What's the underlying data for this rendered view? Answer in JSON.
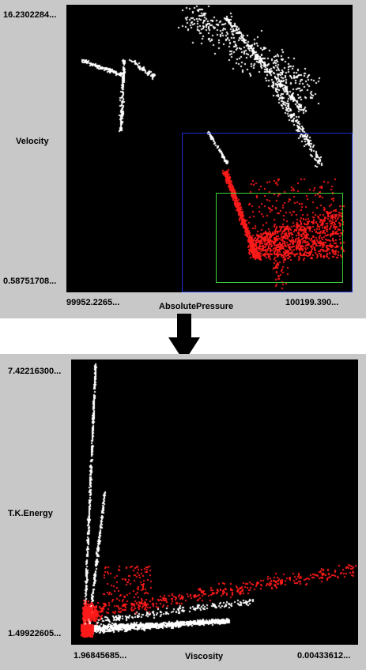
{
  "charts": [
    {
      "type": "scatter",
      "xlabel": "AbsolutePressure",
      "ylabel": "Velocity",
      "x_min_label": "99952.2265...",
      "x_max_label": "100199.390...",
      "y_max_label": "16.2302284...",
      "y_min_label": "0.58751708...",
      "xlim": [
        99952.2265,
        100199.39
      ],
      "ylim": [
        0.58751708,
        16.2302284
      ],
      "series": [
        {
          "color": "#ffffff",
          "role": "unselected points"
        },
        {
          "color": "#ff1a1a",
          "role": "selected points"
        }
      ],
      "selections": [
        {
          "color": "#1a2fd6",
          "x": [
            100052.2,
            100199.39
          ],
          "y": [
            0.58751708,
            9.25
          ]
        },
        {
          "color": "#3ad23a",
          "x": [
            100081.5,
            100191.0
          ],
          "y": [
            1.1,
            6.0
          ]
        }
      ]
    },
    {
      "type": "scatter",
      "xlabel": "Viscosity",
      "ylabel": "T.K.Energy",
      "x_min_label": "1.96845685...",
      "x_max_label": "0.00433612...",
      "y_max_label": "7.42216300...",
      "y_min_label": "1.49922605...",
      "ylim": [
        1.49922605,
        7.422163
      ],
      "series": [
        {
          "color": "#ffffff",
          "role": "points"
        },
        {
          "color": "#ff1a1a",
          "role": "linked selected points"
        }
      ]
    }
  ],
  "colors": {
    "panel": "#c8c8c8",
    "plot_bg": "#000000",
    "selected": "#ff1a1a",
    "unselected": "#ffffff",
    "arrow": "#000000"
  }
}
